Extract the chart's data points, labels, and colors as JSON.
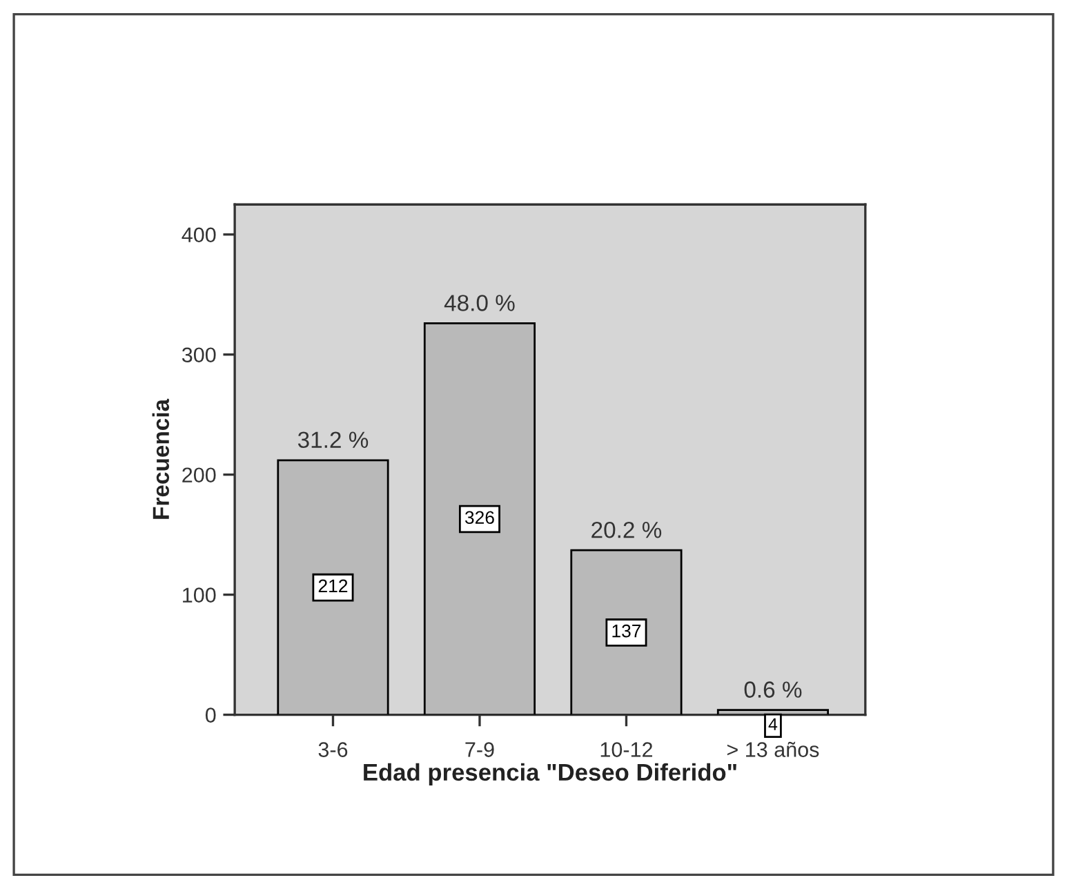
{
  "chart_data": {
    "type": "bar",
    "categories": [
      "3-6",
      "7-9",
      "10-12",
      "> 13 años"
    ],
    "values": [
      212,
      326,
      137,
      4
    ],
    "color": "#b9b9b9",
    "xlabel": "Edad presencia \"Deseo Diferido\"",
    "ylabel": "Frecuencia",
    "ylim": [
      0,
      425
    ],
    "yticks": [
      0,
      100,
      200,
      300,
      400
    ],
    "data_labels": true,
    "annotations": [
      {
        "text": "31.2 %",
        "x": "3-6",
        "y": 212
      },
      {
        "text": "48.0 %",
        "x": "7-9",
        "y": 326
      },
      {
        "text": "20.2 %",
        "x": "10-12",
        "y": 137
      },
      {
        "text": "0.6 %",
        "x": "> 13 años",
        "y": 4
      }
    ]
  }
}
